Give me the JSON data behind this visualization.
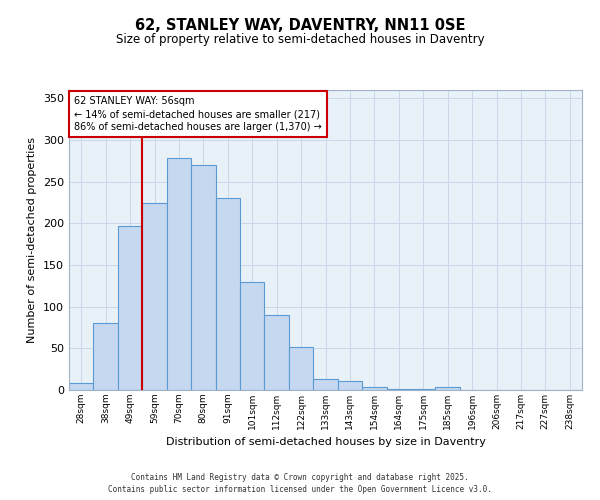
{
  "title": "62, STANLEY WAY, DAVENTRY, NN11 0SE",
  "subtitle": "Size of property relative to semi-detached houses in Daventry",
  "xlabel": "Distribution of semi-detached houses by size in Daventry",
  "ylabel": "Number of semi-detached properties",
  "categories": [
    "28sqm",
    "38sqm",
    "49sqm",
    "59sqm",
    "70sqm",
    "80sqm",
    "91sqm",
    "101sqm",
    "112sqm",
    "122sqm",
    "133sqm",
    "143sqm",
    "154sqm",
    "164sqm",
    "175sqm",
    "185sqm",
    "196sqm",
    "206sqm",
    "217sqm",
    "227sqm",
    "238sqm"
  ],
  "bar_heights": [
    8,
    80,
    197,
    224,
    278,
    270,
    230,
    130,
    90,
    52,
    13,
    11,
    4,
    1,
    1,
    4,
    0,
    0,
    0,
    0,
    0
  ],
  "bar_color": "#c5d8f0",
  "bar_edge_color": "#5b9bd5",
  "red_line_x": 3.0,
  "annotation_text": "62 STANLEY WAY: 56sqm\n← 14% of semi-detached houses are smaller (217)\n86% of semi-detached houses are larger (1,370) →",
  "ylim": [
    0,
    360
  ],
  "yticks": [
    0,
    50,
    100,
    150,
    200,
    250,
    300,
    350
  ],
  "grid_color": "#cad9ea",
  "background_color": "#e8f0f8",
  "footer_line1": "Contains HM Land Registry data © Crown copyright and database right 2025.",
  "footer_line2": "Contains public sector information licensed under the Open Government Licence v3.0."
}
